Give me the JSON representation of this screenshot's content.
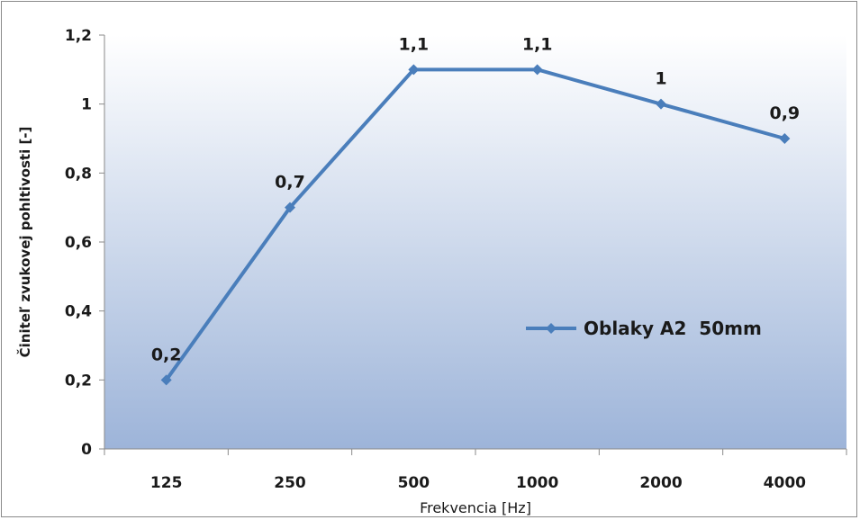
{
  "chart_data": {
    "type": "line",
    "categories": [
      "125",
      "250",
      "500",
      "1000",
      "2000",
      "4000"
    ],
    "series": [
      {
        "name": "Oblaky A2  50mm",
        "values": [
          0.2,
          0.7,
          1.1,
          1.1,
          1.0,
          0.9
        ]
      }
    ],
    "data_labels": [
      "0,2",
      "0,7",
      "1,1",
      "1,1",
      "1",
      "0,9"
    ],
    "yticks": [
      0,
      0.2,
      0.4,
      0.6,
      0.8,
      1.0,
      1.2
    ],
    "ytick_labels": [
      "0",
      "0,2",
      "0,4",
      "0,6",
      "0,8",
      "1",
      "1,2"
    ],
    "ylim": [
      0,
      1.2
    ],
    "xlabel": "Frekvencia [Hz]",
    "ylabel": "Činiteľ zvukovej pohltivosti [-]",
    "grid": {
      "horizontal": false,
      "vertical": false
    },
    "legend_position": "right",
    "colors": {
      "line": "#4a7ebb",
      "plot_top": "#ffffff",
      "plot_bottom": "#9db4d9",
      "axis": "#8a8a8a"
    }
  }
}
